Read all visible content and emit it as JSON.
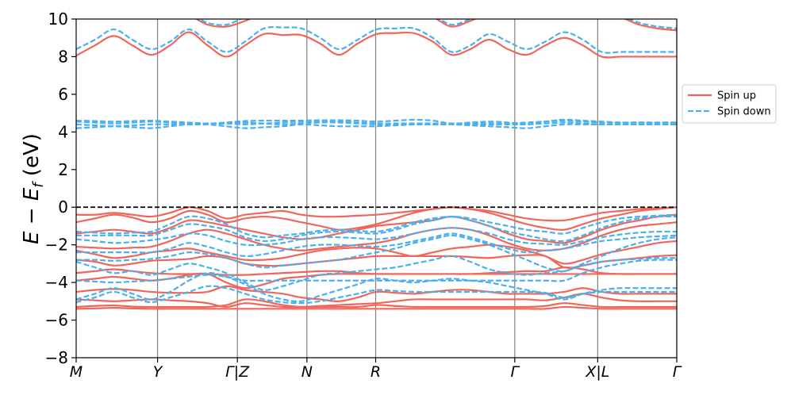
{
  "chart_data": {
    "type": "line",
    "title": "",
    "ylabel": "E − E_f (eV)",
    "ylabel_parts": {
      "a": "E",
      "minus": " − ",
      "b": "E",
      "sub": "f",
      "unit": " (eV)"
    },
    "xlabel": "",
    "ylim": [
      -8,
      10
    ],
    "yticks": [
      -8,
      -6,
      -4,
      -2,
      0,
      2,
      4,
      6,
      8,
      10
    ],
    "xlim": [
      0,
      1
    ],
    "kpoints": [
      {
        "label": "M",
        "x": 0.0
      },
      {
        "label": "Y",
        "x": 0.1355
      },
      {
        "label": "Γ|Z",
        "x": 0.2684
      },
      {
        "label": "N",
        "x": 0.3842
      },
      {
        "label": "R",
        "x": 0.4987
      },
      {
        "label": "Γ",
        "x": 0.7303
      },
      {
        "label": "X|L",
        "x": 0.8684
      },
      {
        "label": "Γ",
        "x": 1.0
      }
    ],
    "fermi_level": 0,
    "legend_position": "right",
    "grid": false,
    "series": [
      {
        "name": "Spin up",
        "color": "#f0665a",
        "style": "solid",
        "bands": [
          [
            -5.4,
            -5.38,
            -5.35,
            -5.38,
            -5.4,
            -5.4,
            -5.4,
            -5.4,
            -5.4,
            -5.4,
            -5.4,
            -5.4,
            -5.4,
            -5.4,
            -5.4,
            -5.4,
            -5.4,
            -5.4,
            -5.4,
            -5.4,
            -5.4,
            -5.4,
            -5.4,
            -5.4,
            -5.4,
            -5.4,
            -5.3,
            -5.35,
            -5.4,
            -5.4,
            -5.4,
            -5.4,
            -5.4
          ],
          [
            -5.3,
            -5.25,
            -5.22,
            -5.28,
            -5.3,
            -5.3,
            -5.3,
            -5.3,
            -5.2,
            -4.9,
            -5.0,
            -5.2,
            -5.3,
            -5.3,
            -5.3,
            -5.3,
            -5.2,
            -5.25,
            -5.3,
            -5.3,
            -5.3,
            -5.3,
            -5.3,
            -5.3,
            -5.3,
            -5.25,
            -5.1,
            -5.2,
            -5.3,
            -5.3,
            -5.3,
            -5.3,
            -5.3
          ],
          [
            -4.9,
            -4.95,
            -5.0,
            -4.95,
            -4.9,
            -4.95,
            -5.0,
            -5.1,
            -5.3,
            -5.1,
            -5.2,
            -5.3,
            -5.3,
            -5.25,
            -5.2,
            -5.15,
            -5.1,
            -5.0,
            -4.9,
            -4.9,
            -4.9,
            -4.9,
            -4.9,
            -4.9,
            -4.9,
            -4.95,
            -4.8,
            -4.6,
            -4.8,
            -4.95,
            -5.0,
            -5.0,
            -5.0
          ],
          [
            -4.5,
            -4.4,
            -4.35,
            -4.4,
            -4.5,
            -4.55,
            -4.55,
            -4.5,
            -4.2,
            -4.4,
            -4.5,
            -4.6,
            -4.8,
            -4.9,
            -5.0,
            -4.8,
            -4.5,
            -4.55,
            -4.6,
            -4.5,
            -4.4,
            -4.4,
            -4.5,
            -4.6,
            -4.6,
            -4.6,
            -4.5,
            -4.3,
            -4.5,
            -4.6,
            -4.6,
            -4.6,
            -4.6
          ],
          [
            -3.9,
            -3.8,
            -3.7,
            -3.8,
            -3.9,
            -3.8,
            -3.6,
            -3.55,
            -4.0,
            -4.3,
            -4.1,
            -3.8,
            -3.7,
            -3.6,
            -3.55,
            -3.55,
            -3.55,
            -3.55,
            -3.55,
            -3.55,
            -3.55,
            -3.55,
            -3.55,
            -3.55,
            -3.55,
            -3.55,
            -3.55,
            -3.55,
            -3.55,
            -3.55,
            -3.55,
            -3.55,
            -3.55
          ],
          [
            -3.5,
            -3.4,
            -3.3,
            -3.4,
            -3.5,
            -3.55,
            -3.55,
            -3.55,
            -3.6,
            -3.6,
            -3.55,
            -3.5,
            -3.45,
            -3.4,
            -3.4,
            -3.5,
            -3.55,
            -3.55,
            -3.55,
            -3.55,
            -3.55,
            -3.55,
            -3.5,
            -3.45,
            -3.4,
            -3.4,
            -3.2,
            -3.3,
            -3.5,
            -3.55,
            -3.55,
            -3.55,
            -3.55
          ],
          [
            -2.8,
            -2.9,
            -3.1,
            -3.0,
            -2.85,
            -2.8,
            -2.75,
            -2.6,
            -2.7,
            -3.0,
            -3.1,
            -3.1,
            -3.0,
            -2.9,
            -2.8,
            -2.7,
            -2.6,
            -2.6,
            -2.6,
            -2.6,
            -2.6,
            -2.65,
            -2.7,
            -2.6,
            -2.55,
            -2.6,
            -3.2,
            -3.1,
            -2.9,
            -2.8,
            -2.7,
            -2.6,
            -2.55
          ],
          [
            -2.3,
            -2.5,
            -2.7,
            -2.6,
            -2.4,
            -2.3,
            -2.2,
            -2.4,
            -2.6,
            -2.8,
            -2.8,
            -2.7,
            -2.5,
            -2.3,
            -2.2,
            -2.15,
            -2.2,
            -2.4,
            -2.6,
            -2.4,
            -2.2,
            -2.1,
            -2.0,
            -2.1,
            -2.3,
            -2.6,
            -3.0,
            -2.8,
            -2.5,
            -2.3,
            -2.1,
            -1.9,
            -1.8
          ],
          [
            -2.1,
            -2.15,
            -2.2,
            -2.15,
            -2.1,
            -1.8,
            -1.4,
            -1.2,
            -1.4,
            -1.7,
            -2.0,
            -2.2,
            -2.3,
            -2.2,
            -2.1,
            -2.0,
            -1.9,
            -1.7,
            -1.4,
            -1.2,
            -1.1,
            -1.2,
            -1.5,
            -1.9,
            -2.2,
            -2.3,
            -2.2,
            -1.9,
            -1.5,
            -1.2,
            -1.0,
            -0.9,
            -0.8
          ],
          [
            -1.4,
            -1.3,
            -1.2,
            -1.3,
            -1.4,
            -1.1,
            -0.7,
            -0.8,
            -1.0,
            -1.2,
            -1.4,
            -1.6,
            -1.7,
            -1.6,
            -1.4,
            -1.2,
            -1.0,
            -0.9,
            -0.8,
            -0.7,
            -0.5,
            -0.7,
            -1.0,
            -1.4,
            -1.7,
            -1.8,
            -1.9,
            -1.6,
            -1.2,
            -0.9,
            -0.7,
            -0.5,
            -0.4
          ],
          [
            -0.8,
            -0.6,
            -0.4,
            -0.55,
            -0.8,
            -0.6,
            -0.2,
            -0.4,
            -0.8,
            -0.6,
            -0.5,
            -0.6,
            -0.8,
            -1.0,
            -1.2,
            -1.1,
            -0.9,
            -0.6,
            -0.3,
            -0.1,
            0.0,
            -0.1,
            -0.3,
            -0.6,
            -0.9,
            -1.1,
            -1.2,
            -0.9,
            -0.6,
            -0.4,
            -0.2,
            -0.1,
            0.0
          ],
          [
            -0.4,
            -0.4,
            -0.3,
            -0.4,
            -0.5,
            -0.3,
            0.0,
            -0.2,
            -0.6,
            -0.4,
            -0.3,
            -0.2,
            -0.4,
            -0.5,
            -0.5,
            -0.45,
            -0.4,
            -0.3,
            -0.2,
            -0.1,
            0.0,
            -0.1,
            -0.2,
            -0.4,
            -0.6,
            -0.7,
            -0.7,
            -0.5,
            -0.3,
            -0.2,
            -0.1,
            -0.05,
            0.0
          ],
          [
            8.05,
            8.6,
            9.1,
            8.6,
            8.1,
            8.6,
            9.3,
            8.6,
            8.0,
            8.6,
            9.2,
            9.15,
            9.15,
            8.7,
            8.1,
            8.7,
            9.2,
            9.25,
            9.25,
            8.8,
            8.1,
            8.4,
            8.9,
            8.4,
            8.1,
            8.6,
            9.0,
            8.6,
            8.0,
            8.0,
            8.0,
            8.0,
            8.0
          ],
          [
            10.3,
            10.3,
            10.3,
            10.3,
            10.3,
            10.3,
            10.2,
            9.7,
            9.6,
            9.9,
            10.3,
            10.3,
            10.3,
            10.3,
            10.3,
            10.3,
            10.3,
            10.3,
            10.3,
            10.1,
            9.6,
            9.9,
            10.3,
            10.3,
            10.3,
            10.3,
            10.3,
            10.3,
            10.3,
            10.1,
            9.7,
            9.5,
            9.4
          ]
        ]
      },
      {
        "name": "Spin down",
        "color": "#4ab0ee",
        "style": "dashed",
        "bands": [
          [
            -5.05,
            -4.8,
            -4.5,
            -4.8,
            -5.05,
            -4.8,
            -4.5,
            -4.2,
            -4.3,
            -4.6,
            -4.9,
            -5.05,
            -5.1,
            -5.0,
            -4.8,
            -4.6,
            -4.4,
            -4.45,
            -4.5,
            -4.5,
            -4.5,
            -4.5,
            -4.5,
            -4.5,
            -4.5,
            -4.55,
            -4.8,
            -4.6,
            -4.5,
            -4.5,
            -4.5,
            -4.5,
            -4.5
          ],
          [
            -4.9,
            -4.6,
            -4.3,
            -4.6,
            -4.9,
            -4.5,
            -3.9,
            -3.5,
            -3.7,
            -4.1,
            -4.6,
            -4.9,
            -5.0,
            -4.7,
            -4.4,
            -4.1,
            -3.8,
            -3.9,
            -4.0,
            -3.9,
            -3.8,
            -3.9,
            -4.0,
            -4.2,
            -4.4,
            -4.6,
            -4.9,
            -4.6,
            -4.4,
            -4.3,
            -4.3,
            -4.3,
            -4.3
          ],
          [
            -3.9,
            -3.95,
            -4.0,
            -3.95,
            -3.9,
            -3.8,
            -3.7,
            -3.6,
            -3.7,
            -3.9,
            -3.9,
            -3.9,
            -3.9,
            -3.9,
            -3.9,
            -3.9,
            -3.9,
            -3.9,
            -3.9,
            -3.9,
            -3.9,
            -3.9,
            -3.9,
            -3.9,
            -3.9,
            -3.9,
            -3.9,
            -3.5,
            -3.2,
            -3.0,
            -2.85,
            -2.8,
            -2.8
          ],
          [
            -2.9,
            -3.2,
            -3.5,
            -3.4,
            -3.6,
            -3.3,
            -3.0,
            -3.2,
            -3.5,
            -4.0,
            -4.4,
            -4.2,
            -3.9,
            -3.6,
            -3.5,
            -3.4,
            -3.3,
            -3.2,
            -3.0,
            -2.8,
            -2.6,
            -2.9,
            -3.3,
            -3.5,
            -3.6,
            -3.5,
            -3.4,
            -3.1,
            -2.9,
            -2.8,
            -2.75,
            -2.7,
            -2.7
          ],
          [
            -2.8,
            -2.8,
            -2.85,
            -2.8,
            -2.75,
            -2.6,
            -2.4,
            -2.5,
            -2.7,
            -3.0,
            -3.2,
            -3.1,
            -3.0,
            -2.9,
            -2.8,
            -2.6,
            -2.4,
            -2.2,
            -1.9,
            -1.7,
            -1.5,
            -1.7,
            -2.0,
            -2.4,
            -2.8,
            -3.2,
            -3.4,
            -3.0,
            -2.6,
            -2.2,
            -1.9,
            -1.7,
            -1.6
          ],
          [
            -2.4,
            -2.4,
            -2.4,
            -2.4,
            -2.4,
            -2.2,
            -1.9,
            -2.1,
            -2.4,
            -2.6,
            -2.5,
            -2.3,
            -2.1,
            -2.0,
            -2.0,
            -2.05,
            -2.1,
            -2.0,
            -1.8,
            -1.6,
            -1.4,
            -1.6,
            -1.9,
            -2.2,
            -2.4,
            -2.3,
            -2.2,
            -2.0,
            -1.8,
            -1.7,
            -1.6,
            -1.55,
            -1.5
          ],
          [
            -1.7,
            -1.8,
            -1.9,
            -1.85,
            -1.75,
            -1.6,
            -1.4,
            -1.5,
            -1.8,
            -2.0,
            -2.0,
            -1.9,
            -1.7,
            -1.6,
            -1.6,
            -1.65,
            -1.7,
            -1.6,
            -1.4,
            -1.2,
            -1.1,
            -1.2,
            -1.4,
            -1.7,
            -1.9,
            -1.95,
            -2.0,
            -1.8,
            -1.6,
            -1.45,
            -1.35,
            -1.3,
            -1.3
          ],
          [
            -1.5,
            -1.5,
            -1.5,
            -1.5,
            -1.5,
            -1.2,
            -0.9,
            -1.0,
            -1.2,
            -1.6,
            -1.8,
            -1.7,
            -1.5,
            -1.35,
            -1.3,
            -1.35,
            -1.4,
            -1.2,
            -0.9,
            -0.7,
            -0.5,
            -0.7,
            -1.0,
            -1.3,
            -1.5,
            -1.7,
            -1.8,
            -1.5,
            -1.1,
            -0.8,
            -0.6,
            -0.5,
            -0.5
          ],
          [
            -1.3,
            -1.35,
            -1.4,
            -1.35,
            -1.3,
            -0.9,
            -0.5,
            -0.6,
            -0.9,
            -1.4,
            -1.6,
            -1.5,
            -1.4,
            -1.25,
            -1.2,
            -1.25,
            -1.3,
            -1.1,
            -0.8,
            -0.6,
            -0.5,
            -0.6,
            -0.8,
            -1.0,
            -1.2,
            -1.3,
            -1.4,
            -1.1,
            -0.8,
            -0.6,
            -0.5,
            -0.45,
            -0.4
          ],
          [
            4.2,
            4.25,
            4.3,
            4.25,
            4.2,
            4.3,
            4.4,
            4.4,
            4.3,
            4.2,
            4.25,
            4.3,
            4.4,
            4.35,
            4.3,
            4.3,
            4.3,
            4.35,
            4.4,
            4.4,
            4.4,
            4.35,
            4.3,
            4.25,
            4.2,
            4.3,
            4.4,
            4.4,
            4.4,
            4.4,
            4.4,
            4.4,
            4.4
          ],
          [
            4.4,
            4.35,
            4.3,
            4.35,
            4.4,
            4.4,
            4.4,
            4.4,
            4.45,
            4.5,
            4.45,
            4.4,
            4.45,
            4.5,
            4.5,
            4.45,
            4.4,
            4.4,
            4.4,
            4.4,
            4.4,
            4.4,
            4.4,
            4.4,
            4.4,
            4.45,
            4.5,
            4.45,
            4.4,
            4.4,
            4.4,
            4.4,
            4.4
          ],
          [
            4.55,
            4.5,
            4.45,
            4.5,
            4.55,
            4.5,
            4.45,
            4.45,
            4.45,
            4.4,
            4.45,
            4.5,
            4.55,
            4.55,
            4.55,
            4.5,
            4.45,
            4.45,
            4.45,
            4.45,
            4.45,
            4.45,
            4.45,
            4.45,
            4.5,
            4.55,
            4.6,
            4.55,
            4.5,
            4.5,
            4.5,
            4.5,
            4.5
          ],
          [
            4.6,
            4.58,
            4.55,
            4.58,
            4.6,
            4.55,
            4.5,
            4.45,
            4.5,
            4.58,
            4.6,
            4.6,
            4.6,
            4.62,
            4.62,
            4.6,
            4.55,
            4.6,
            4.65,
            4.6,
            4.45,
            4.5,
            4.55,
            4.5,
            4.4,
            4.55,
            4.65,
            4.6,
            4.55,
            4.5,
            4.5,
            4.5,
            4.5
          ],
          [
            8.4,
            8.9,
            9.45,
            8.9,
            8.4,
            8.8,
            9.45,
            8.8,
            8.25,
            8.8,
            9.5,
            9.55,
            9.5,
            9.0,
            8.4,
            8.9,
            9.45,
            9.5,
            9.5,
            9.0,
            8.25,
            8.6,
            9.2,
            8.8,
            8.4,
            8.8,
            9.3,
            8.9,
            8.25,
            8.25,
            8.25,
            8.25,
            8.25
          ],
          [
            10.4,
            10.4,
            10.4,
            10.4,
            10.4,
            10.4,
            10.3,
            9.8,
            9.7,
            10.1,
            10.4,
            10.4,
            10.4,
            10.4,
            10.4,
            10.4,
            10.4,
            10.4,
            10.4,
            10.2,
            9.7,
            10.0,
            10.4,
            10.4,
            10.4,
            10.4,
            10.4,
            10.4,
            10.4,
            10.2,
            9.8,
            9.6,
            9.5
          ]
        ]
      }
    ]
  }
}
